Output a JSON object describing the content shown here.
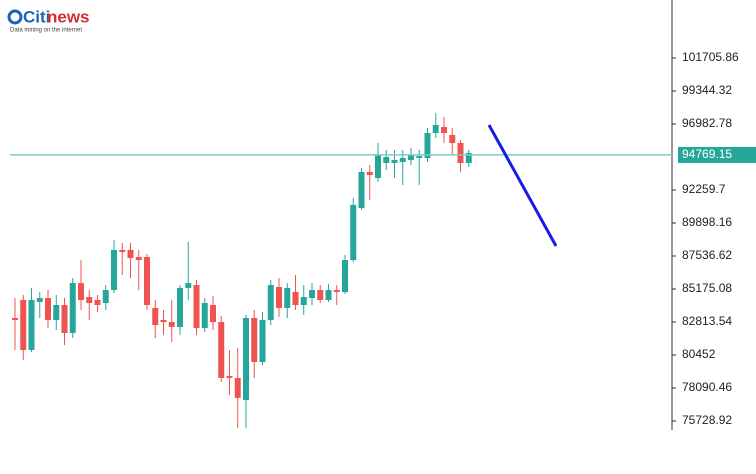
{
  "logo": {
    "brand": "Citi",
    "news": "news",
    "tagline": "Data mining on the internet"
  },
  "chart_data": {
    "type": "candlestick",
    "up_color": "#26a69a",
    "down_color": "#ef5350",
    "ylim": [
      75085,
      105856
    ],
    "yticks": [
      {
        "value": 75728.92,
        "label": "75728.92"
      },
      78090.46,
      80452,
      82813.54,
      85175.08,
      87536.62,
      89898.16,
      92259.7,
      96982.78,
      99344.32,
      101705.86
    ],
    "current_price": 94769.15,
    "current_price_color": "#26a69a",
    "open": [
      83100,
      84390,
      80810,
      84250,
      84530,
      82960,
      84030,
      82030,
      85600,
      84600,
      84390,
      84170,
      85100,
      87970,
      87970,
      87460,
      87460,
      83820,
      82960,
      82810,
      82460,
      85250,
      85460,
      82380,
      84030,
      82810,
      78950,
      78810,
      77230,
      83100,
      79950,
      82960,
      85320,
      83820,
      84960,
      84030,
      84530,
      85100,
      84390,
      85100,
      84960,
      87250,
      90970,
      93550,
      93120,
      94190,
      94190,
      94260,
      94410,
      94550,
      94550,
      96340,
      96770,
      96200,
      95620,
      94190
    ],
    "high": [
      84530,
      84750,
      85250,
      84960,
      85100,
      84750,
      84530,
      85960,
      87250,
      85100,
      84750,
      85460,
      88680,
      88470,
      88470,
      87970,
      87680,
      84390,
      83670,
      84390,
      85460,
      88540,
      85820,
      84530,
      84670,
      83240,
      80810,
      80950,
      83310,
      83670,
      83530,
      85820,
      85960,
      85600,
      86180,
      85460,
      85600,
      85460,
      85530,
      85460,
      87610,
      91690,
      93830,
      94050,
      95620,
      95120,
      95120,
      95120,
      95270,
      95120,
      96700,
      97770,
      97480,
      96700,
      95840,
      95120
    ],
    "low": [
      80810,
      80090,
      80670,
      83100,
      82380,
      82240,
      81170,
      81670,
      83670,
      82960,
      83530,
      83670,
      84890,
      86180,
      85960,
      85100,
      83670,
      81670,
      81880,
      81380,
      81880,
      84390,
      81880,
      82100,
      82240,
      78520,
      77590,
      75230,
      75230,
      78810,
      79740,
      82600,
      83170,
      83100,
      83670,
      83310,
      84030,
      84170,
      84250,
      84030,
      84820,
      87110,
      90830,
      91540,
      92830,
      93690,
      93120,
      92620,
      94050,
      92620,
      94260,
      95980,
      95620,
      94760,
      93550,
      93910
    ],
    "close": [
      82960,
      80810,
      84390,
      84530,
      82960,
      84030,
      82030,
      85600,
      84390,
      84170,
      84030,
      85100,
      87970,
      87820,
      87390,
      87250,
      84030,
      82600,
      82810,
      82460,
      85250,
      85600,
      82380,
      84170,
      82810,
      78810,
      78810,
      77380,
      83100,
      79950,
      82960,
      85460,
      83820,
      85250,
      84030,
      84600,
      85100,
      84390,
      85100,
      84960,
      87250,
      91190,
      93550,
      93330,
      94760,
      94620,
      94410,
      94550,
      94760,
      94690,
      96340,
      96910,
      96340,
      95620,
      94190,
      94910
    ]
  }
}
